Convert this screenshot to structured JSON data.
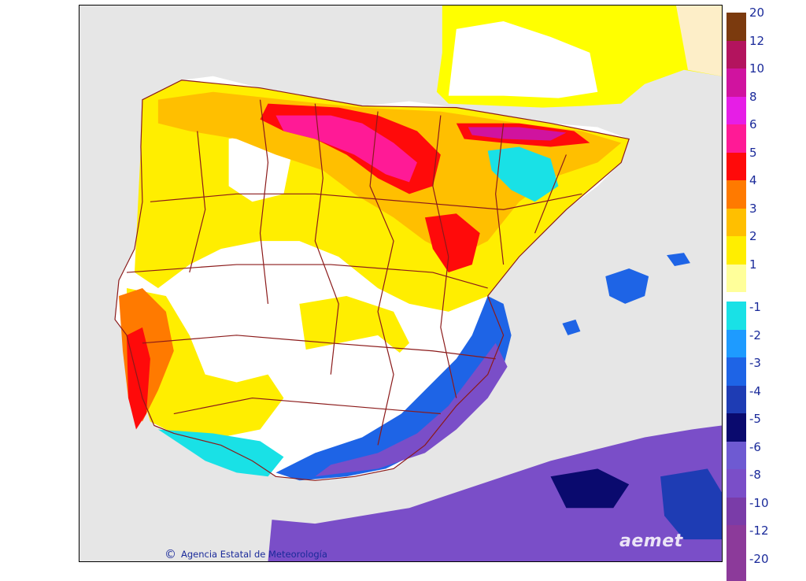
{
  "credit_text": "Agencia Estatal de Meteorología",
  "credit_symbol": "©",
  "logo_text": "aemet",
  "legend": {
    "positive": [
      {
        "label": "20",
        "color": "#7b3a0e"
      },
      {
        "label": "12",
        "color": "#b3145e"
      },
      {
        "label": "10",
        "color": "#d0139f"
      },
      {
        "label": "8",
        "color": "#e61ee6"
      },
      {
        "label": "6",
        "color": "#ff1a96"
      },
      {
        "label": "5",
        "color": "#ff0a0a"
      },
      {
        "label": "4",
        "color": "#ff7a00"
      },
      {
        "label": "3",
        "color": "#ffbf00"
      },
      {
        "label": "2",
        "color": "#ffee00"
      },
      {
        "label": "1",
        "color": "#ffff9a"
      }
    ],
    "negative": [
      {
        "label": "-1",
        "color": "#19e1e6"
      },
      {
        "label": "-2",
        "color": "#1e9bff"
      },
      {
        "label": "-3",
        "color": "#1e64e6"
      },
      {
        "label": "-4",
        "color": "#1e3cb4"
      },
      {
        "label": "-5",
        "color": "#0a0a6e"
      },
      {
        "label": "-6",
        "color": "#6e5ad2"
      },
      {
        "label": "-8",
        "color": "#7a4ec8"
      },
      {
        "label": "-10",
        "color": "#7a3ca8"
      },
      {
        "label": "-12",
        "color": "#8c3a9a"
      },
      {
        "label": "-20",
        "color": "#8c3a9a"
      }
    ]
  },
  "colors": {
    "sea": "#e6e6e6",
    "land_neutral": "#ffffff",
    "france_beige": "#fdeec8",
    "border": "#8b1a1a"
  }
}
